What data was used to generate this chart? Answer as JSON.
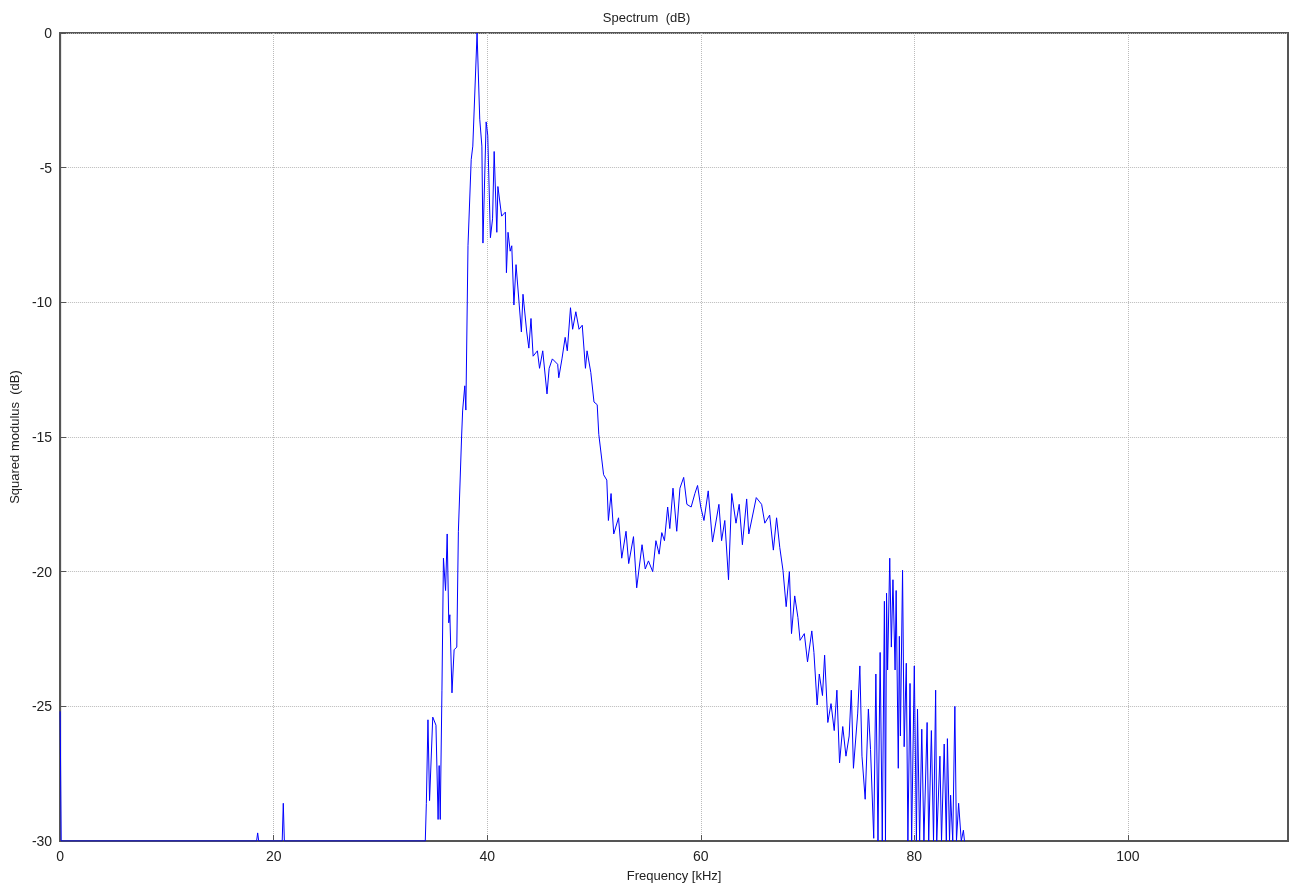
{
  "chart_data": {
    "type": "line",
    "title": "Spectrum  (dB)",
    "xlabel": "Frequency [kHz]",
    "ylabel": "Squared modulus  (dB)",
    "xlim": [
      0,
      115
    ],
    "xticks": [
      0,
      20,
      40,
      60,
      80,
      100
    ],
    "ylim": [
      -30,
      0
    ],
    "yticks": [
      -30,
      -25,
      -20,
      -15,
      -10,
      -5,
      0
    ],
    "grid": true,
    "marker": "none",
    "line_style": "solid",
    "series": [
      {
        "color": "#0000ff",
        "x": [
          0,
          0.1,
          18.4,
          18.5,
          18.6,
          20.8,
          20.9,
          21.0,
          34.2,
          34.3,
          34.45,
          34.6,
          34.9,
          35.2,
          35.4,
          35.5,
          35.6,
          35.76,
          35.9,
          36.1,
          36.25,
          36.4,
          36.5,
          36.7,
          36.9,
          37.15,
          37.3,
          37.6,
          37.7,
          37.9,
          38.0,
          38.2,
          38.5,
          38.65,
          39.05,
          39.3,
          39.5,
          39.6,
          39.9,
          40.05,
          40.3,
          40.5,
          40.65,
          40.9,
          41.0,
          41.35,
          41.7,
          41.8,
          41.95,
          42.15,
          42.3,
          42.5,
          42.7,
          43.0,
          43.2,
          43.35,
          43.7,
          43.9,
          44.1,
          44.3,
          44.7,
          44.9,
          45.2,
          45.6,
          45.8,
          46.1,
          46.6,
          46.7,
          47.0,
          47.3,
          47.5,
          47.8,
          48.0,
          48.3,
          48.6,
          48.9,
          49.2,
          49.35,
          49.7,
          50.0,
          50.3,
          50.45,
          50.9,
          51.2,
          51.35,
          51.6,
          51.85,
          52.3,
          52.6,
          53.0,
          53.25,
          53.7,
          54.0,
          54.5,
          54.8,
          55.1,
          55.5,
          55.8,
          56.1,
          56.35,
          56.6,
          56.9,
          57.1,
          57.4,
          57.75,
          58.05,
          58.4,
          58.7,
          59.1,
          59.45,
          59.7,
          60.0,
          60.3,
          60.7,
          61.1,
          61.7,
          61.95,
          62.25,
          62.6,
          62.9,
          63.3,
          63.6,
          63.9,
          64.3,
          64.5,
          65.2,
          65.7,
          66.0,
          66.45,
          66.8,
          67.1,
          67.4,
          67.7,
          68.0,
          68.3,
          68.5,
          68.8,
          69.1,
          69.3,
          69.7,
          70.0,
          70.4,
          70.6,
          70.9,
          71.1,
          71.4,
          71.6,
          71.9,
          72.2,
          72.5,
          72.75,
          73.0,
          73.3,
          73.6,
          73.9,
          74.1,
          74.3,
          74.7,
          74.9,
          75.1,
          75.4,
          75.7,
          75.9,
          76.2,
          76.4,
          76.6,
          76.8,
          77.0,
          77.2,
          77.3,
          77.4,
          77.5,
          77.7,
          77.85,
          78.0,
          78.2,
          78.3,
          78.5,
          78.6,
          78.7,
          78.9,
          79.05,
          79.25,
          79.4,
          79.6,
          79.75,
          80.0,
          80.2,
          80.3,
          80.5,
          80.7,
          80.9,
          81.2,
          81.35,
          81.6,
          81.8,
          82.0,
          82.1,
          82.4,
          82.55,
          82.8,
          83.0,
          83.1,
          83.3,
          83.4,
          83.6,
          83.8,
          83.95,
          84.15,
          84.4,
          84.6,
          84.7
        ],
        "values": [
          -25.2,
          -30,
          -30,
          -29.7,
          -30,
          -30,
          -28.6,
          -30,
          -30,
          -28.6,
          -25.5,
          -28.5,
          -25.4,
          -25.7,
          -29.2,
          -27.2,
          -29.2,
          -24.4,
          -19.5,
          -20.7,
          -18.6,
          -21.9,
          -21.6,
          -24.5,
          -22.9,
          -22.8,
          -18.5,
          -15.0,
          -14.0,
          -13.1,
          -14.0,
          -7.9,
          -4.7,
          -4.2,
          0,
          -3.2,
          -4.2,
          -7.8,
          -3.3,
          -3.8,
          -7.6,
          -6.9,
          -4.4,
          -7.4,
          -5.7,
          -6.8,
          -6.65,
          -8.9,
          -7.4,
          -8.1,
          -7.9,
          -10.1,
          -8.6,
          -10.1,
          -11.1,
          -9.7,
          -11.1,
          -11.7,
          -10.6,
          -12.0,
          -11.8,
          -12.45,
          -11.8,
          -13.4,
          -12.45,
          -12.1,
          -12.3,
          -12.8,
          -12.1,
          -11.3,
          -11.8,
          -10.2,
          -11.0,
          -10.35,
          -11.0,
          -10.85,
          -12.45,
          -11.8,
          -12.6,
          -13.7,
          -13.8,
          -14.9,
          -16.4,
          -16.6,
          -18.1,
          -17.1,
          -18.6,
          -18.0,
          -19.5,
          -18.5,
          -19.7,
          -18.7,
          -20.6,
          -19.0,
          -19.9,
          -19.6,
          -20.0,
          -18.85,
          -19.35,
          -18.55,
          -18.85,
          -17.6,
          -18.4,
          -16.9,
          -18.5,
          -16.9,
          -16.5,
          -17.5,
          -17.6,
          -17.1,
          -16.8,
          -17.6,
          -18.1,
          -17.0,
          -18.9,
          -17.5,
          -18.85,
          -18.1,
          -20.3,
          -17.1,
          -18.2,
          -17.5,
          -19.0,
          -17.3,
          -18.6,
          -17.25,
          -17.5,
          -18.2,
          -17.9,
          -19.2,
          -18.0,
          -19.1,
          -19.95,
          -21.3,
          -20.0,
          -22.3,
          -20.9,
          -21.7,
          -22.55,
          -22.3,
          -23.35,
          -22.2,
          -23.0,
          -24.95,
          -23.8,
          -24.6,
          -23.1,
          -25.6,
          -24.9,
          -25.9,
          -24.4,
          -27.1,
          -25.75,
          -26.85,
          -26.1,
          -24.4,
          -27.3,
          -25.25,
          -23.5,
          -26.85,
          -28.45,
          -25.1,
          -26.6,
          -29.9,
          -23.8,
          -30,
          -23.0,
          -30,
          -21.1,
          -30,
          -20.8,
          -23.65,
          -19.5,
          -22.8,
          -20.3,
          -23.65,
          -20.7,
          -27.3,
          -22.4,
          -26.1,
          -19.95,
          -26.5,
          -23.4,
          -30,
          -24.15,
          -30,
          -23.5,
          -30,
          -25.1,
          -30,
          -25.85,
          -30,
          -25.6,
          -30,
          -25.9,
          -30,
          -24.4,
          -30,
          -26.85,
          -30,
          -26.4,
          -30,
          -26.2,
          -30,
          -28.3,
          -30,
          -25.0,
          -30,
          -28.6,
          -30,
          -29.6,
          -30
        ]
      }
    ]
  }
}
